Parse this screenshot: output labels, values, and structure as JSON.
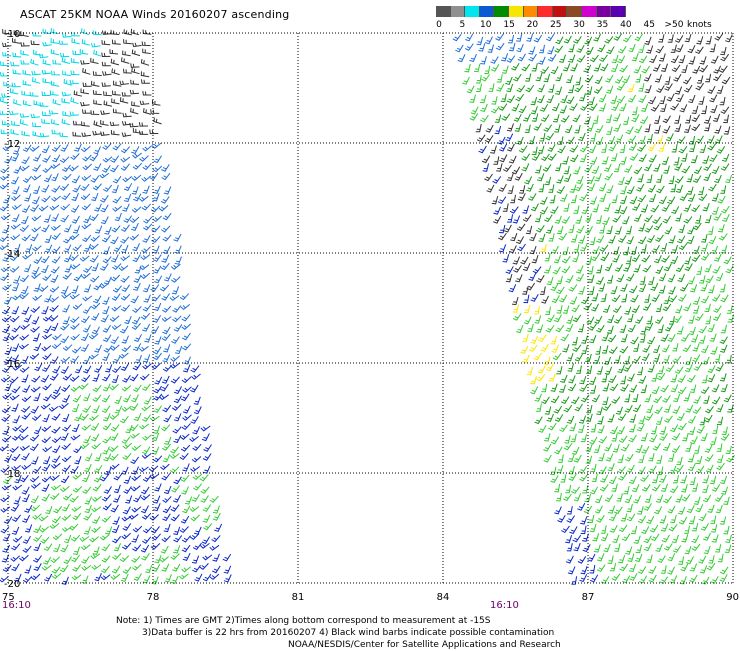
{
  "header": {
    "title": "ASCAT 25KM NOAA Winds 20160207 ascending"
  },
  "legend": {
    "bins": [
      {
        "label": "0",
        "color": "#555555"
      },
      {
        "label": "5",
        "color": "#909090"
      },
      {
        "label": "10",
        "color": "#00e5ee"
      },
      {
        "label": "15",
        "color": "#0a5ad6"
      },
      {
        "label": "20",
        "color": "#008c00"
      },
      {
        "label": "25",
        "color": "#f7e600"
      },
      {
        "label": "30",
        "color": "#ff8c00"
      },
      {
        "label": "35",
        "color": "#ff2a2a"
      },
      {
        "label": "40",
        "color": "#c01010"
      },
      {
        "label": "45",
        "color": "#8a4a26"
      },
      {
        "label": ">50",
        "color": "#d000d0"
      }
    ],
    "extra_colors": [
      "#7a00a0",
      "#5a00b0",
      "#34c8ff",
      "#22aa22"
    ],
    "units": "knots"
  },
  "map": {
    "lat_labels": [
      "-10",
      "-12",
      "-14",
      "-16",
      "-18",
      "-20"
    ],
    "lon_labels": [
      "75",
      "78",
      "81",
      "84",
      "87",
      "90"
    ],
    "time_labels": [
      "16:10",
      "16:10"
    ],
    "colors": {
      "gray": "#333333",
      "cyan": "#00d8e8",
      "blue_light": "#1f6fd6",
      "blue": "#0a28c8",
      "green_light": "#33cc33",
      "green": "#179a17",
      "yellow": "#ffe600",
      "grid": "#000000",
      "time": "#6a006a"
    }
  },
  "notes": {
    "line1": "Note: 1) Times are GMT 2)Times along bottom correspond to measurement at -15S",
    "line2": "3)Data buffer is 22 hrs from 20160207 4) Black wind barbs indicate possible contamination",
    "line3": "NOAA/NESDIS/Center for Satellite Applications and Research"
  }
}
